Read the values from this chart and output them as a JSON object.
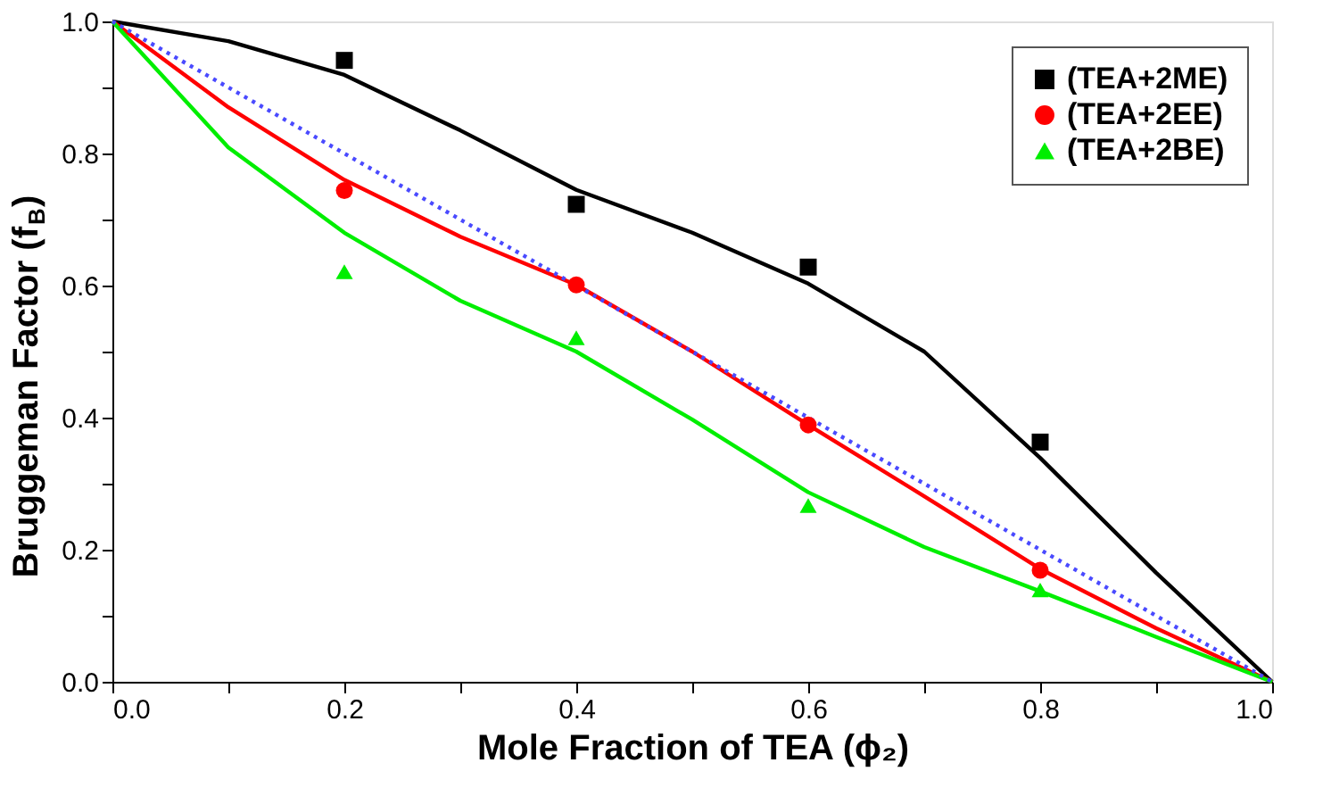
{
  "chart_data": {
    "type": "scatter",
    "xlabel": "Mole Fraction of TEA (ϕ₂)",
    "ylabel": "Bruggeman Factor (f$_{B}$)",
    "xlim": [
      0,
      1
    ],
    "ylim": [
      0,
      1
    ],
    "xticks": [
      {
        "value": 0.0,
        "label": "0.0"
      },
      {
        "value": 0.1,
        "label": null
      },
      {
        "value": 0.2,
        "label": "0.2"
      },
      {
        "value": 0.3,
        "label": null
      },
      {
        "value": 0.4,
        "label": "0.4"
      },
      {
        "value": 0.5,
        "label": null
      },
      {
        "value": 0.6,
        "label": "0.6"
      },
      {
        "value": 0.7,
        "label": null
      },
      {
        "value": 0.8,
        "label": "0.8"
      },
      {
        "value": 0.9,
        "label": null
      },
      {
        "value": 1.0,
        "label": "1.0"
      }
    ],
    "yticks": [
      {
        "value": 0.0,
        "label": "0.0"
      },
      {
        "value": 0.1,
        "label": null
      },
      {
        "value": 0.2,
        "label": "0.2"
      },
      {
        "value": 0.3,
        "label": null
      },
      {
        "value": 0.4,
        "label": "0.4"
      },
      {
        "value": 0.5,
        "label": null
      },
      {
        "value": 0.6,
        "label": "0.6"
      },
      {
        "value": 0.7,
        "label": null
      },
      {
        "value": 0.8,
        "label": "0.8"
      },
      {
        "value": 0.9,
        "label": null
      },
      {
        "value": 1.0,
        "label": "1.0"
      }
    ],
    "grid": false,
    "legend": "top right",
    "series": [
      {
        "name": "(TEA+2ME)",
        "marker": "square",
        "color": "#000000",
        "x": [
          0.2,
          0.4,
          0.6,
          0.8
        ],
        "values": [
          0.941,
          0.723,
          0.628,
          0.363
        ]
      },
      {
        "name": "(TEA+2EE)",
        "marker": "circle",
        "color": "#ff0000",
        "x": [
          0.2,
          0.4,
          0.6,
          0.8
        ],
        "values": [
          0.744,
          0.601,
          0.389,
          0.169
        ]
      },
      {
        "name": "(TEA+2BE)",
        "marker": "triangle",
        "color": "#00ee00",
        "x": [
          0.2,
          0.4,
          0.6,
          0.8
        ],
        "values": [
          0.621,
          0.521,
          0.267,
          0.139
        ]
      },
      {
        "type": "line",
        "line_style": "solid",
        "color": "#000000",
        "x": [
          0,
          0.1,
          0.2,
          0.3,
          0.4,
          0.5,
          0.6,
          0.7,
          0.8,
          0.9,
          1.0
        ],
        "values": [
          1.0,
          0.97,
          0.919,
          0.835,
          0.745,
          0.68,
          0.603,
          0.5,
          0.339,
          0.165,
          0.0
        ]
      },
      {
        "type": "line",
        "line_style": "solid",
        "color": "#ff0000",
        "x": [
          0,
          0.1,
          0.2,
          0.3,
          0.4,
          0.5,
          0.6,
          0.7,
          0.8,
          0.9,
          1.0
        ],
        "values": [
          1.0,
          0.87,
          0.76,
          0.674,
          0.601,
          0.5,
          0.389,
          0.281,
          0.171,
          0.081,
          0.0
        ]
      },
      {
        "type": "line",
        "line_style": "solid",
        "color": "#00ee00",
        "x": [
          0,
          0.1,
          0.2,
          0.3,
          0.4,
          0.5,
          0.6,
          0.7,
          0.8,
          0.9,
          1.0
        ],
        "values": [
          1.0,
          0.809,
          0.68,
          0.577,
          0.5,
          0.397,
          0.287,
          0.204,
          0.137,
          0.068,
          0.0
        ]
      },
      {
        "type": "line",
        "line_style": "dotted",
        "color": "#4a4aff",
        "x": [
          0,
          1.0
        ],
        "values": [
          1.0,
          0.0
        ]
      }
    ]
  }
}
